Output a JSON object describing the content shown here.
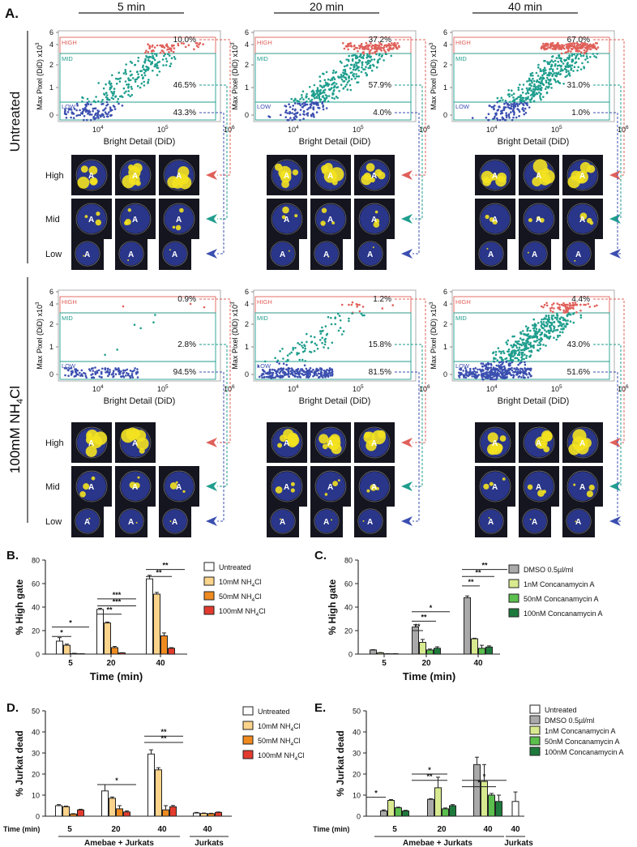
{
  "panel_a": {
    "letter": "A.",
    "time_headers": [
      "5 min",
      "20 min",
      "40 min"
    ],
    "row_labels": [
      "Untreated",
      "100mM NH4Cl"
    ],
    "row_label_parts": {
      "prefix": "100mM NH",
      "sub": "4",
      "suffix": "Cl"
    },
    "y_axis_label": "Max Pixel (DiD) x10",
    "y_axis_sup": "3",
    "x_axis_label": "Bright Detail (DiD)",
    "y_ticks": [
      "6",
      "4",
      "2",
      "1",
      "0"
    ],
    "x_ticks": {
      "base": "10",
      "exps": [
        "4",
        "5",
        "6"
      ]
    },
    "gate_labels": [
      "HIGH",
      "MID",
      "LOW"
    ],
    "image_row_labels": [
      "High",
      "Mid",
      "Low"
    ],
    "percentages": [
      [
        [
          "10.0%",
          "46.5%",
          "43.3%"
        ],
        [
          "37.2%",
          "57.9%",
          "4.0%"
        ],
        [
          "67.0%",
          "31.0%",
          "1.0%"
        ]
      ],
      [
        [
          "0.9%",
          "2.8%",
          "94.5%"
        ],
        [
          "1.2%",
          "15.8%",
          "81.5%"
        ],
        [
          "4.4%",
          "43.0%",
          "51.6%"
        ]
      ]
    ],
    "cell_labels": [
      "A",
      "H"
    ],
    "colors": {
      "high": "#e0605a",
      "mid": "#1f9e8e",
      "low": "#3b4fb0",
      "cell_bg": "#15151f",
      "cell": "#2d3c9e",
      "dye": "#f3e21f"
    }
  },
  "panel_b": {
    "letter": "B.",
    "chart_data": {
      "type": "bar",
      "ylabel": "% High gate",
      "xlabel": "Time (min)",
      "categories": [
        "5",
        "20",
        "40"
      ],
      "ylim": [
        0,
        80
      ],
      "yticks": [
        "0",
        "20",
        "40",
        "60",
        "80"
      ],
      "series": [
        {
          "name": "Untreated",
          "values": [
            11,
            38,
            64
          ],
          "errors": [
            3,
            1,
            3
          ],
          "color": "#ffffff"
        },
        {
          "name": "10mM NH4Cl",
          "values": [
            7.5,
            26.5,
            51
          ],
          "errors": [
            1,
            0.8,
            1.5
          ],
          "color": "#fbd38a"
        },
        {
          "name": "50mM NH4Cl",
          "values": [
            0.5,
            5.5,
            15.5
          ],
          "errors": [
            0.2,
            1,
            2.5
          ],
          "color": "#ef8a1f"
        },
        {
          "name": "100mM NH4Cl",
          "values": [
            0.3,
            1,
            5
          ],
          "errors": [
            0.1,
            0.2,
            0.5
          ],
          "color": "#e23b2e"
        }
      ],
      "significance": [
        "*",
        "*",
        "***",
        "***",
        "**",
        "**",
        "**"
      ]
    }
  },
  "panel_c": {
    "letter": "C.",
    "chart_data": {
      "type": "bar",
      "ylabel": "% High gate",
      "xlabel": "Time (min)",
      "categories": [
        "5",
        "20",
        "40"
      ],
      "ylim": [
        0,
        80
      ],
      "yticks": [
        "0",
        "20",
        "40",
        "60",
        "80"
      ],
      "series": [
        {
          "name": "DMSO 0.5µl/ml",
          "values": [
            3.5,
            23,
            48
          ],
          "errors": [
            0.3,
            2,
            1.5
          ],
          "color": "#a9a9a9"
        },
        {
          "name": "1nM Concanamycin A",
          "values": [
            1,
            10,
            13
          ],
          "errors": [
            0.3,
            2.5,
            0.5
          ],
          "color": "#d7ea8f"
        },
        {
          "name": "50nM Concanamycin A",
          "values": [
            0.3,
            3.5,
            5
          ],
          "errors": [
            0.1,
            0.8,
            2.5
          ],
          "color": "#5bbf4d"
        },
        {
          "name": "100nM Concanamycin A",
          "values": [
            0.3,
            5,
            6
          ],
          "errors": [
            0.1,
            1.2,
            1
          ],
          "color": "#1d7a3c"
        }
      ],
      "significance": [
        "*",
        "**",
        "**",
        "**",
        "**",
        "**"
      ]
    }
  },
  "panel_d": {
    "letter": "D.",
    "chart_data": {
      "type": "bar",
      "ylabel": "% Jurkat dead",
      "time_label": "Time (min)",
      "categories": [
        "5",
        "20",
        "40",
        "40"
      ],
      "groups": [
        "Amebae + Jurkats",
        "Jurkats"
      ],
      "ylim": [
        0,
        50
      ],
      "yticks": [
        "0",
        "10",
        "20",
        "30",
        "40",
        "50"
      ],
      "series": [
        {
          "name": "Untreated",
          "values": [
            5,
            12,
            29.5,
            1.5
          ],
          "errors": [
            0.5,
            3,
            2,
            0.3
          ],
          "color": "#ffffff"
        },
        {
          "name": "10mM NH4Cl",
          "values": [
            4.5,
            8.5,
            22,
            1.3
          ],
          "errors": [
            0.3,
            0.6,
            1,
            0.2
          ],
          "color": "#fbd38a"
        },
        {
          "name": "50mM NH4Cl",
          "values": [
            1,
            3.5,
            3,
            1.2
          ],
          "errors": [
            0.2,
            1.5,
            2,
            0.2
          ],
          "color": "#ef8a1f"
        },
        {
          "name": "100mM NH4Cl",
          "values": [
            3,
            2,
            4.5,
            1.8
          ],
          "errors": [
            0.3,
            0.5,
            0.6,
            0.2
          ],
          "color": "#e23b2e"
        }
      ],
      "significance": [
        "*",
        "**",
        "**"
      ]
    }
  },
  "panel_e": {
    "letter": "E.",
    "chart_data": {
      "type": "bar",
      "ylabel": "% Jurkat dead",
      "time_label": "Time (min)",
      "categories": [
        "5",
        "20",
        "40",
        "40"
      ],
      "groups": [
        "Amebae + Jurkats",
        "Jurkats"
      ],
      "ylim": [
        0,
        50
      ],
      "yticks": [
        "0",
        "10",
        "20",
        "30",
        "40",
        "50"
      ],
      "series": [
        {
          "name": "Untreated",
          "values": [
            null,
            null,
            null,
            7
          ],
          "errors": [
            0,
            0,
            0,
            4.5
          ],
          "color": "#ffffff"
        },
        {
          "name": "DMSO 0.5µl/ml",
          "values": [
            2.5,
            8,
            24.5,
            null
          ],
          "errors": [
            0.5,
            0.3,
            3.5,
            0
          ],
          "color": "#a9a9a9"
        },
        {
          "name": "1nM Concanamycin A",
          "values": [
            7.5,
            13.5,
            16.5,
            null
          ],
          "errors": [
            0.4,
            5,
            8,
            0
          ],
          "color": "#d7ea8f"
        },
        {
          "name": "50nM Concanamycin A",
          "values": [
            4,
            3.5,
            10,
            null
          ],
          "errors": [
            0.3,
            0.4,
            0.8,
            0
          ],
          "color": "#5bbf4d"
        },
        {
          "name": "100nM Concanamycin A",
          "values": [
            2.5,
            5,
            7,
            null
          ],
          "errors": [
            0.3,
            0.5,
            3,
            0
          ],
          "color": "#1d7a3c"
        }
      ],
      "significance": [
        "*",
        "**",
        "*",
        "*",
        "*"
      ]
    }
  }
}
